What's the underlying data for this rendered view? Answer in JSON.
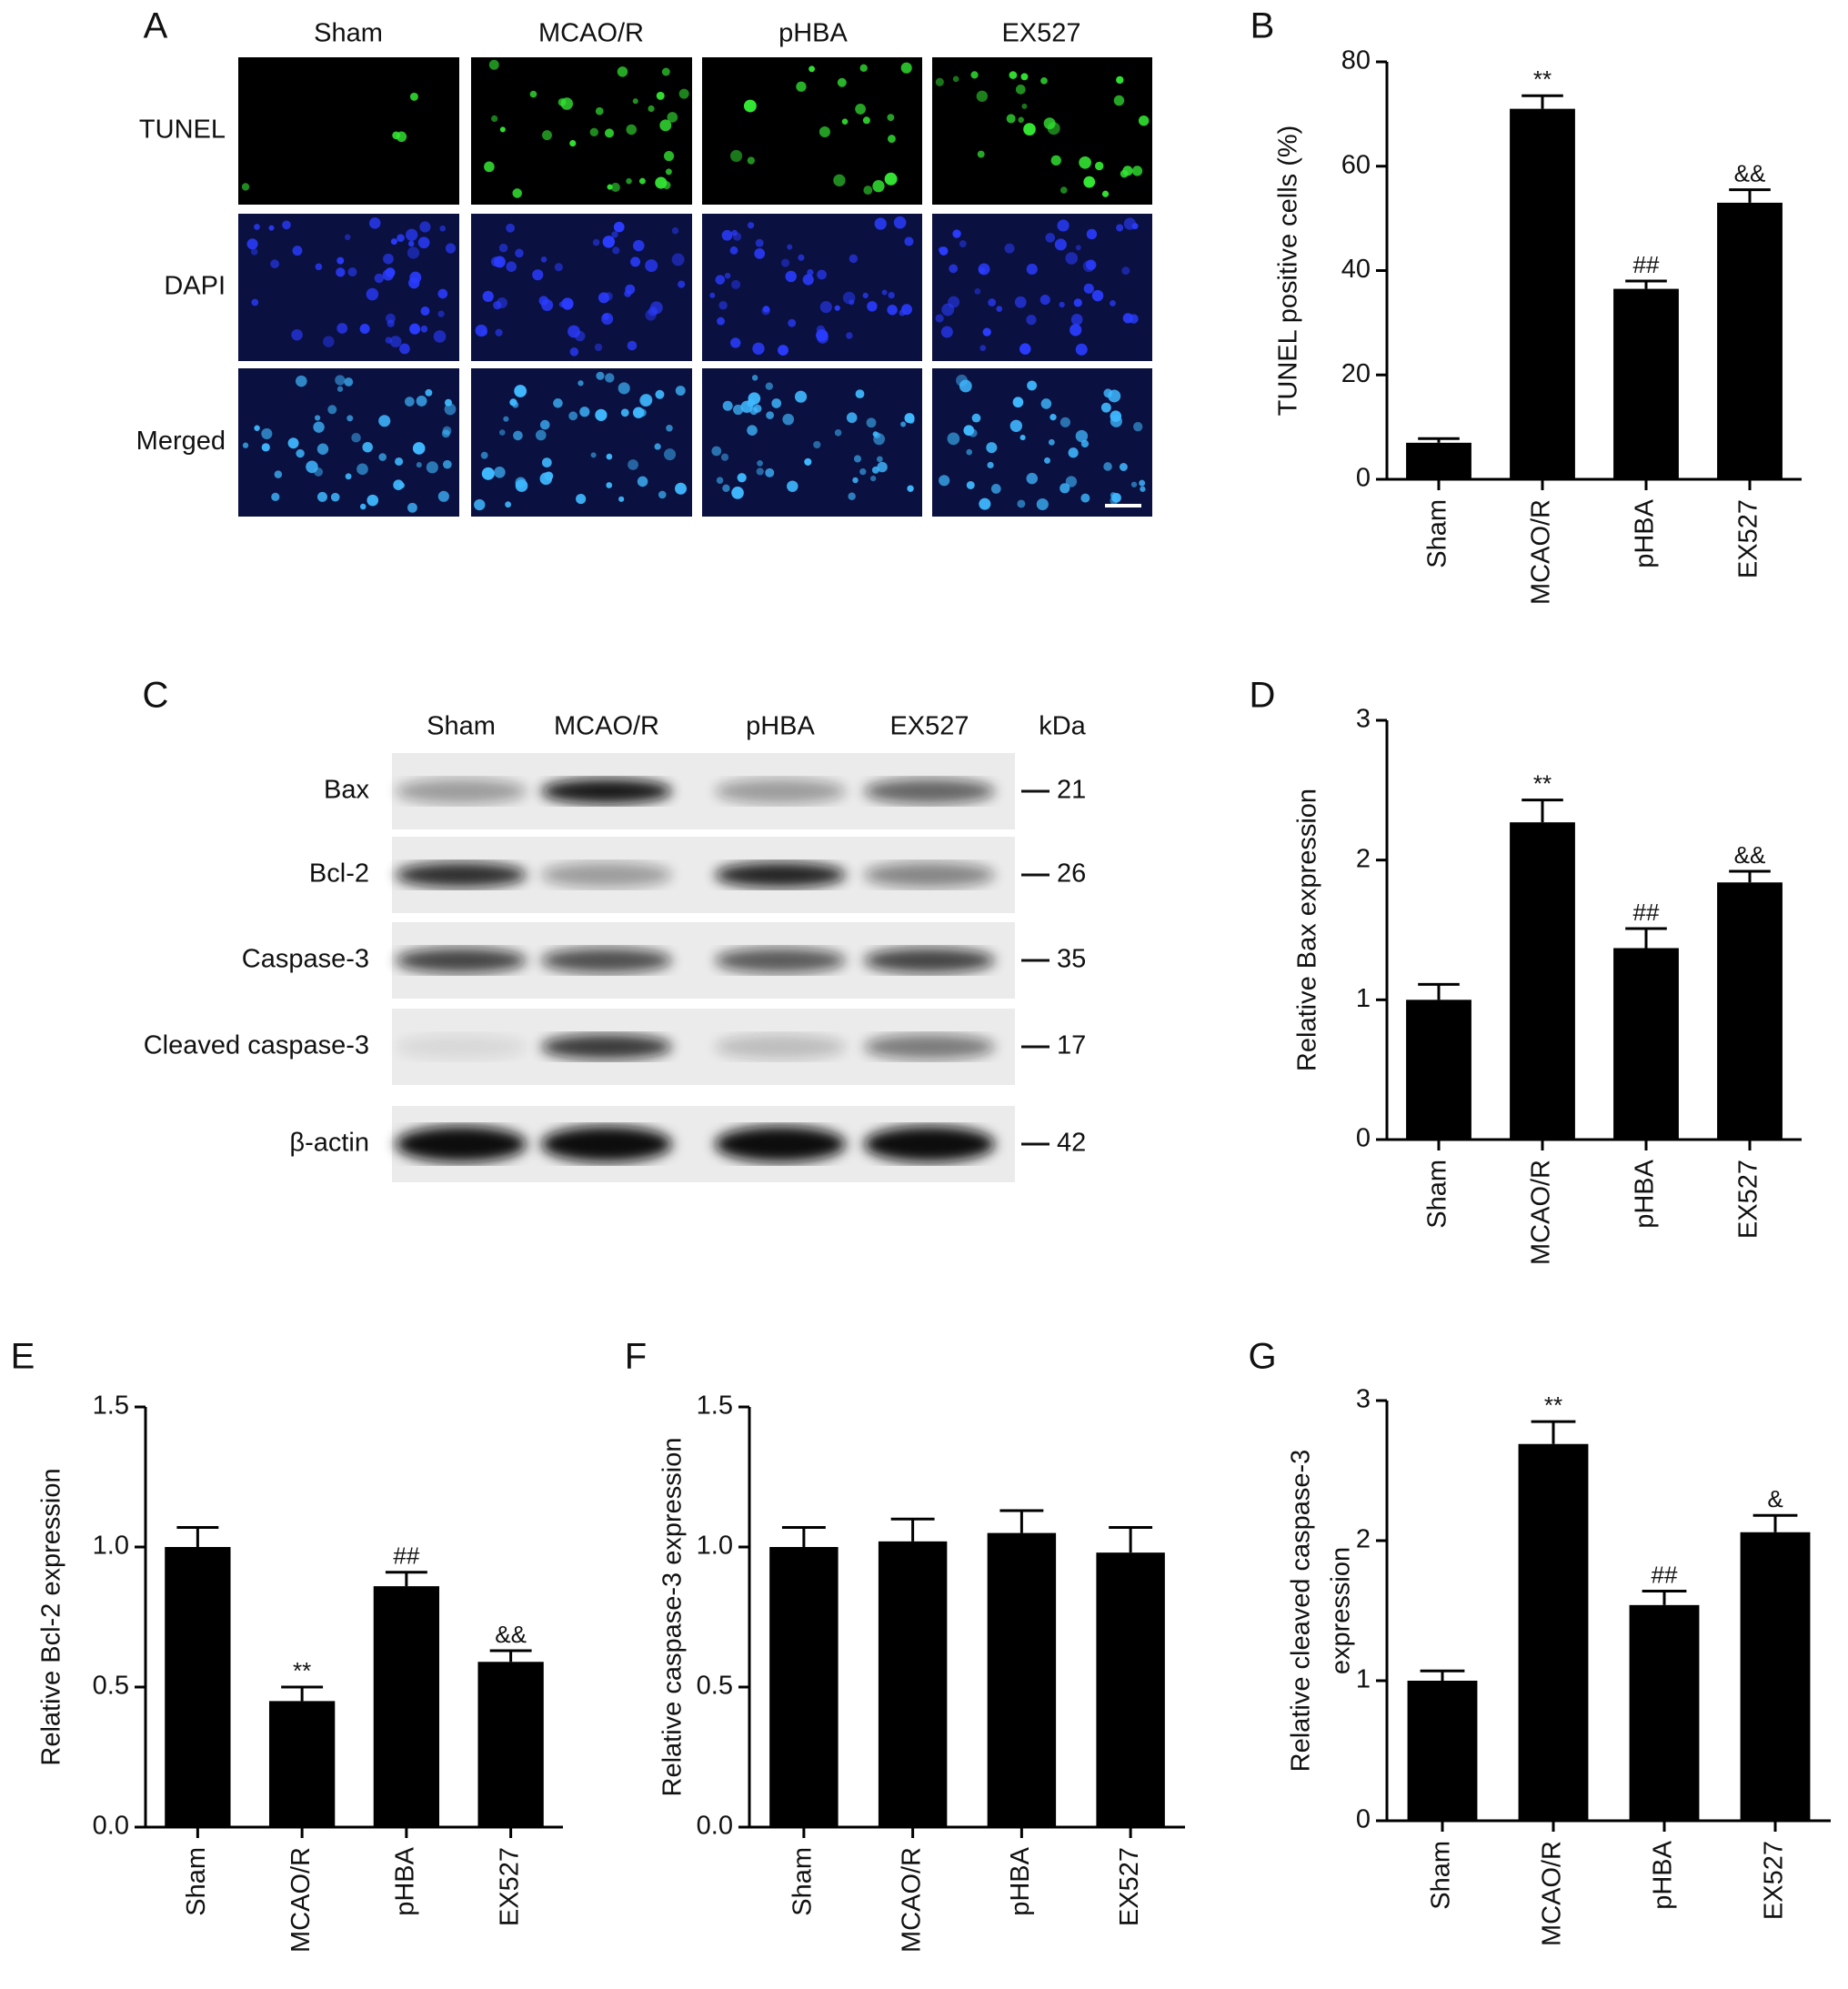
{
  "micrograph": {
    "panel": "A",
    "columns": [
      "Sham",
      "MCAO/R",
      "pHBA",
      "EX527"
    ],
    "rows": [
      "TUNEL",
      "DAPI",
      "Merged"
    ]
  },
  "western_blot": {
    "panel": "C",
    "columns": [
      "Sham",
      "MCAO/R",
      "pHBA",
      "EX527"
    ],
    "kda_header": "kDa",
    "rows": [
      {
        "label": "Bax",
        "kda": "21"
      },
      {
        "label": "Bcl-2",
        "kda": "26"
      },
      {
        "label": "Caspase-3",
        "kda": "35"
      },
      {
        "label": "Cleaved caspase-3",
        "kda": "17"
      },
      {
        "label": "β-actin",
        "kda": "42"
      }
    ]
  },
  "chart_data": [
    {
      "type": "bar",
      "panel": "B",
      "ylabel": [
        "TUNEL positive cells (%)"
      ],
      "categories": [
        "Sham",
        "MCAO/R",
        "pHBA",
        "EX527"
      ],
      "values": [
        7,
        71,
        36.5,
        53
      ],
      "errors": [
        0.8,
        2.5,
        1.5,
        2.5
      ],
      "annotations": [
        null,
        "**",
        "##",
        "&&"
      ],
      "color": "#000000",
      "ylim": [
        0,
        80
      ],
      "yticks": [
        0,
        20,
        40,
        60,
        80
      ]
    },
    {
      "type": "bar",
      "panel": "D",
      "ylabel": [
        "Relative Bax expression"
      ],
      "categories": [
        "Sham",
        "MCAO/R",
        "pHBA",
        "EX527"
      ],
      "values": [
        1.0,
        2.27,
        1.37,
        1.84
      ],
      "errors": [
        0.11,
        0.16,
        0.14,
        0.08
      ],
      "annotations": [
        null,
        "**",
        "##",
        "&&"
      ],
      "color": "#000000",
      "ylim": [
        0,
        3
      ],
      "yticks": [
        0,
        1,
        2,
        3
      ]
    },
    {
      "type": "bar",
      "panel": "E",
      "ylabel": [
        "Relative Bcl-2 expression"
      ],
      "categories": [
        "Sham",
        "MCAO/R",
        "pHBA",
        "EX527"
      ],
      "values": [
        1.0,
        0.45,
        0.86,
        0.59
      ],
      "errors": [
        0.07,
        0.05,
        0.05,
        0.04
      ],
      "annotations": [
        null,
        "**",
        "##",
        "&&"
      ],
      "color": "#000000",
      "ylim": [
        0,
        1.5
      ],
      "yticks": [
        {
          "value": 0,
          "label": "0.0"
        },
        0.5,
        {
          "value": 1,
          "label": "1.0"
        },
        1.5
      ]
    },
    {
      "type": "bar",
      "panel": "F",
      "ylabel": [
        "Relative caspase-3 expression"
      ],
      "categories": [
        "Sham",
        "MCAO/R",
        "pHBA",
        "EX527"
      ],
      "values": [
        1.0,
        1.02,
        1.05,
        0.98
      ],
      "errors": [
        0.07,
        0.08,
        0.08,
        0.09
      ],
      "color": "#000000",
      "ylim": [
        0,
        1.5
      ],
      "yticks": [
        {
          "value": 0,
          "label": "0.0"
        },
        0.5,
        {
          "value": 1,
          "label": "1.0"
        },
        1.5
      ]
    },
    {
      "type": "bar",
      "panel": "G",
      "ylabel": [
        "Relative cleaved caspase-3",
        "expression"
      ],
      "categories": [
        "Sham",
        "MCAO/R",
        "pHBA",
        "EX527"
      ],
      "values": [
        1.0,
        2.69,
        1.54,
        2.06
      ],
      "errors": [
        0.07,
        0.16,
        0.1,
        0.12
      ],
      "annotations": [
        null,
        "**",
        "##",
        "&"
      ],
      "color": "#000000",
      "ylim": [
        0,
        3
      ],
      "yticks": [
        0,
        1,
        2,
        3
      ]
    }
  ]
}
